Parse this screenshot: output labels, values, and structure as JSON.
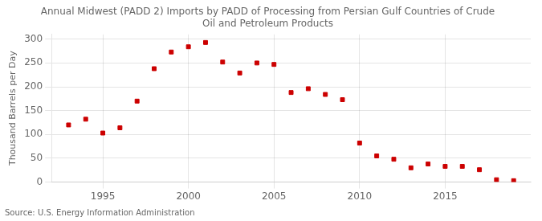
{
  "chart_data": {
    "type": "scatter",
    "title": "Annual Midwest (PADD 2) Imports by PADD of Processing from Persian Gulf Countries of Crude\nOil and Petroleum Products",
    "ylabel": "Thousand Barrels per Day",
    "annotations": [
      "Source: U.S. Energy Information Administration"
    ],
    "x": [
      1993,
      1994,
      1995,
      1996,
      1997,
      1998,
      1999,
      2000,
      2001,
      2002,
      2003,
      2004,
      2005,
      2006,
      2007,
      2008,
      2009,
      2010,
      2011,
      2012,
      2013,
      2014,
      2015,
      2016,
      2017,
      2018,
      2019
    ],
    "values": [
      120,
      132,
      103,
      114,
      170,
      238,
      273,
      284,
      293,
      252,
      229,
      250,
      247,
      188,
      196,
      184,
      173,
      82,
      55,
      48,
      30,
      38,
      33,
      33,
      26,
      5,
      3
    ],
    "color": "#cc0000",
    "marker": "square",
    "ylim": [
      0,
      310
    ],
    "yticks": [
      0,
      50,
      100,
      150,
      200,
      250,
      300
    ],
    "xlim": [
      1992,
      2020
    ],
    "xticks": [
      1995,
      2000,
      2005,
      2010,
      2015
    ],
    "grid": true
  }
}
